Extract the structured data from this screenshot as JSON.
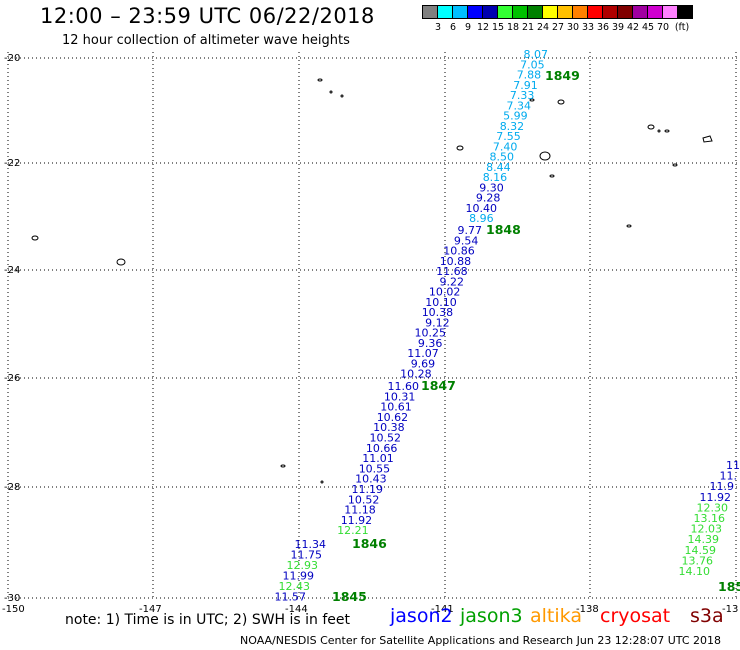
{
  "header": {
    "title": "12:00 – 23:59 UTC 06/22/2018",
    "subtitle": "12 hour collection of altimeter wave heights"
  },
  "legend": {
    "colors": [
      "#808080",
      "#00ffff",
      "#00bfff",
      "#0000ff",
      "#0000b0",
      "#33ff33",
      "#00c000",
      "#008000",
      "#ffff00",
      "#ffc000",
      "#ff8000",
      "#ff0000",
      "#b00000",
      "#800000",
      "#a000a0",
      "#d000d0",
      "#ff80ff",
      "#000000"
    ],
    "labels": [
      "3",
      "6",
      "9",
      "12",
      "15",
      "18",
      "21",
      "24",
      "27",
      "30",
      "33",
      "36",
      "39",
      "42",
      "45",
      "70",
      "(ft)"
    ]
  },
  "axes": {
    "y_ticks": [
      "-20",
      "-22",
      "-24",
      "-26",
      "-28",
      "-30"
    ],
    "x_ticks": [
      "-150",
      "-147",
      "-144",
      "-141",
      "-138",
      "-13"
    ]
  },
  "tracks": [
    {
      "name": "1849",
      "values": [
        "8.07",
        "7.05",
        "7.88",
        "7.91",
        "7.33",
        "7.34",
        "5.99",
        "8.32",
        "7.55",
        "7.40",
        "8.50",
        "8.44",
        "8.16",
        "9.30",
        "9.28",
        "10.40",
        "8.96"
      ]
    },
    {
      "name": "1848",
      "values": [
        "9.77",
        "9.54",
        "10.86",
        "10.88",
        "11.68",
        "9.22",
        "10.02",
        "10.10",
        "10.38",
        "9.12",
        "10.25",
        "9.36",
        "11.07",
        "9.69",
        "10.28"
      ]
    },
    {
      "name": "1847",
      "values": [
        "11.60",
        "10.31",
        "10.61",
        "10.62",
        "10.38",
        "10.52",
        "10.66",
        "11.01",
        "10.55",
        "10.43",
        "11.19",
        "10.52",
        "11.18",
        "11.92",
        "12.21"
      ]
    },
    {
      "name": "1846",
      "values": [
        "11.34",
        "11.75",
        "12.93",
        "11.99",
        "12.43",
        "11.57"
      ]
    },
    {
      "name": "1845",
      "values": []
    },
    {
      "name": "185",
      "values": [
        "11",
        "11.",
        "11.9",
        "11.92",
        "12.30",
        "13.16",
        "12.03",
        "14.39",
        "14.59",
        "13.76",
        "14.10"
      ]
    }
  ],
  "footer": {
    "note": "note:  1) Time is in UTC; 2) SWH is in feet",
    "satellites": [
      {
        "name": "jason2",
        "color": "#0000ff"
      },
      {
        "name": "jason3",
        "color": "#00a000"
      },
      {
        "name": "altika",
        "color": "#ff9900"
      },
      {
        "name": "cryosat",
        "color": "#ff0000"
      },
      {
        "name": "s3a",
        "color": "#800000"
      }
    ],
    "credit": "NOAA/NESDIS Center for Satellite Applications and Research    Jun 23 12:28:07 UTC 2018"
  }
}
